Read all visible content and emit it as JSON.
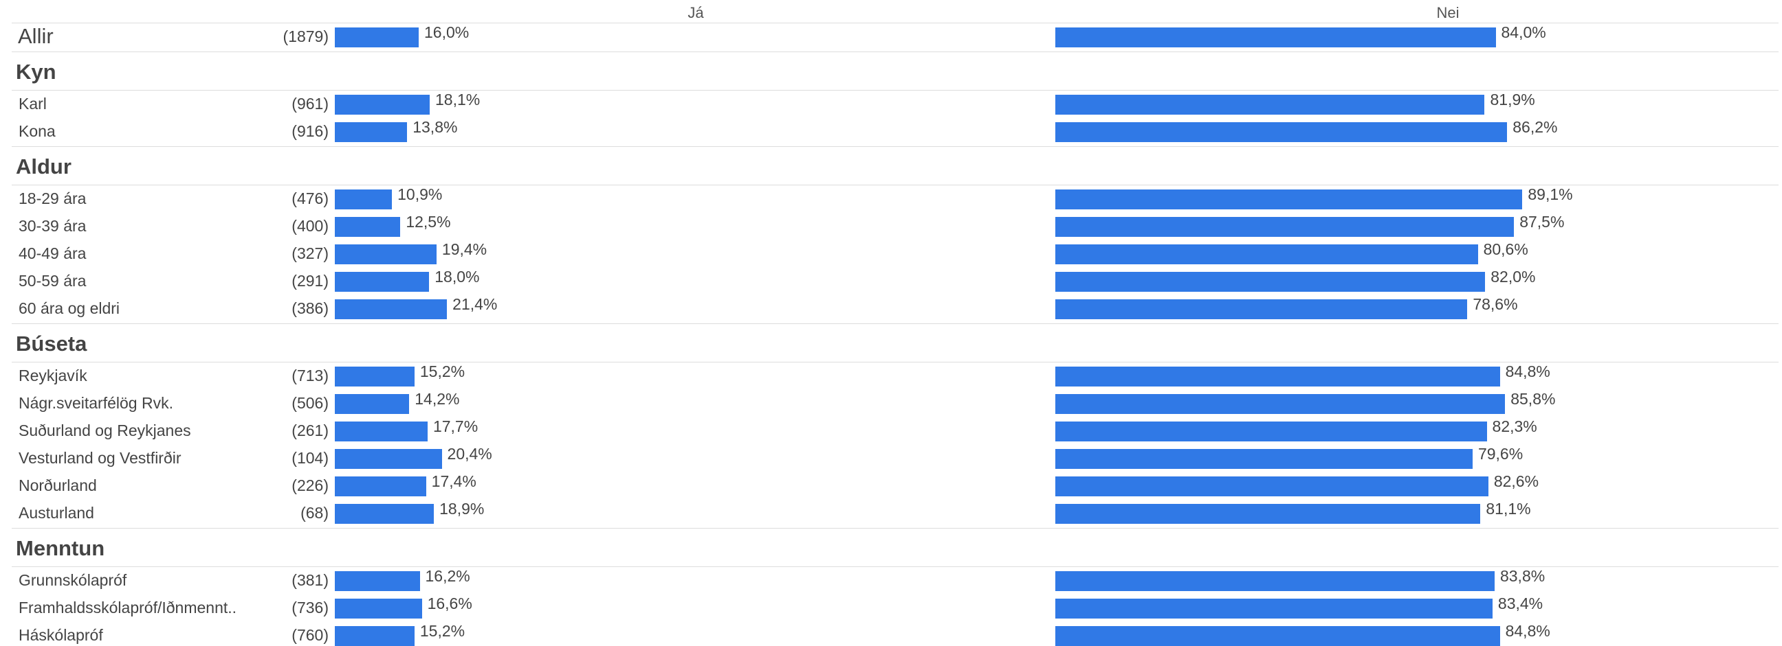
{
  "chart_data": {
    "type": "bar",
    "orientation": "horizontal",
    "columns": [
      "Já",
      "Nei"
    ],
    "xlim": [
      0,
      100
    ],
    "groups": [
      {
        "title": "",
        "rows": [
          {
            "label": "Allir",
            "n": "(1879)",
            "values": [
              16.0,
              84.0
            ],
            "labels": [
              "16,0%",
              "84,0%"
            ]
          }
        ]
      },
      {
        "title": "Kyn",
        "rows": [
          {
            "label": "Karl",
            "n": "(961)",
            "values": [
              18.1,
              81.9
            ],
            "labels": [
              "18,1%",
              "81,9%"
            ]
          },
          {
            "label": "Kona",
            "n": "(916)",
            "values": [
              13.8,
              86.2
            ],
            "labels": [
              "13,8%",
              "86,2%"
            ]
          }
        ]
      },
      {
        "title": "Aldur",
        "rows": [
          {
            "label": "18-29 ára",
            "n": "(476)",
            "values": [
              10.9,
              89.1
            ],
            "labels": [
              "10,9%",
              "89,1%"
            ]
          },
          {
            "label": "30-39 ára",
            "n": "(400)",
            "values": [
              12.5,
              87.5
            ],
            "labels": [
              "12,5%",
              "87,5%"
            ]
          },
          {
            "label": "40-49 ára",
            "n": "(327)",
            "values": [
              19.4,
              80.6
            ],
            "labels": [
              "19,4%",
              "80,6%"
            ]
          },
          {
            "label": "50-59 ára",
            "n": "(291)",
            "values": [
              18.0,
              82.0
            ],
            "labels": [
              "18,0%",
              "82,0%"
            ]
          },
          {
            "label": "60 ára og eldri",
            "n": "(386)",
            "values": [
              21.4,
              78.6
            ],
            "labels": [
              "21,4%",
              "78,6%"
            ]
          }
        ]
      },
      {
        "title": "Búseta",
        "rows": [
          {
            "label": "Reykjavík",
            "n": "(713)",
            "values": [
              15.2,
              84.8
            ],
            "labels": [
              "15,2%",
              "84,8%"
            ]
          },
          {
            "label": "Nágr.sveitarfélög Rvk.",
            "n": "(506)",
            "values": [
              14.2,
              85.8
            ],
            "labels": [
              "14,2%",
              "85,8%"
            ]
          },
          {
            "label": "Suðurland og Reykjanes",
            "n": "(261)",
            "values": [
              17.7,
              82.3
            ],
            "labels": [
              "17,7%",
              "82,3%"
            ]
          },
          {
            "label": "Vesturland og Vestfirðir",
            "n": "(104)",
            "values": [
              20.4,
              79.6
            ],
            "labels": [
              "20,4%",
              "79,6%"
            ]
          },
          {
            "label": "Norðurland",
            "n": "(226)",
            "values": [
              17.4,
              82.6
            ],
            "labels": [
              "17,4%",
              "82,6%"
            ]
          },
          {
            "label": "Austurland",
            "n": "(68)",
            "values": [
              18.9,
              81.1
            ],
            "labels": [
              "18,9%",
              "81,1%"
            ]
          }
        ]
      },
      {
        "title": "Menntun",
        "rows": [
          {
            "label": "Grunnskólapróf",
            "n": "(381)",
            "values": [
              16.2,
              83.8
            ],
            "labels": [
              "16,2%",
              "83,8%"
            ]
          },
          {
            "label": "Framhaldsskólapróf/Iðnmennt..",
            "n": "(736)",
            "values": [
              16.6,
              83.4
            ],
            "labels": [
              "16,6%",
              "83,4%"
            ]
          },
          {
            "label": "Háskólapróf",
            "n": "(760)",
            "values": [
              15.2,
              84.8
            ],
            "labels": [
              "15,2%",
              "84,8%"
            ]
          }
        ]
      }
    ],
    "colors": {
      "bar": "#3079e6",
      "separator": "#dddddd",
      "text": "#444444"
    }
  }
}
